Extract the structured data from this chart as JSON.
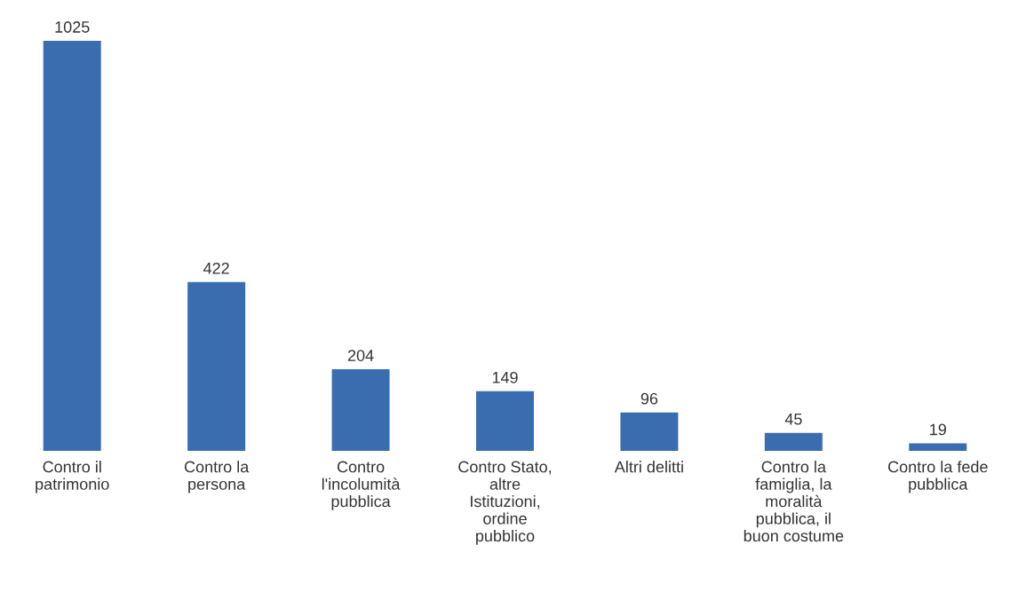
{
  "chart_data": {
    "type": "bar",
    "categories": [
      "Contro il\npatrimonio",
      "Contro la\npersona",
      "Contro\nl'incolumità\npubblica",
      "Contro Stato,\naltre\nIstituzioni,\nordine\npubblico",
      "Altri delitti",
      "Contro la\nfamiglia, la\nmoralità\npubblica, il\nbuon costume",
      "Contro la fede\npubblica"
    ],
    "values": [
      1025,
      422,
      204,
      149,
      96,
      45,
      19
    ],
    "color": "#3a6db0",
    "data_labels": true
  }
}
